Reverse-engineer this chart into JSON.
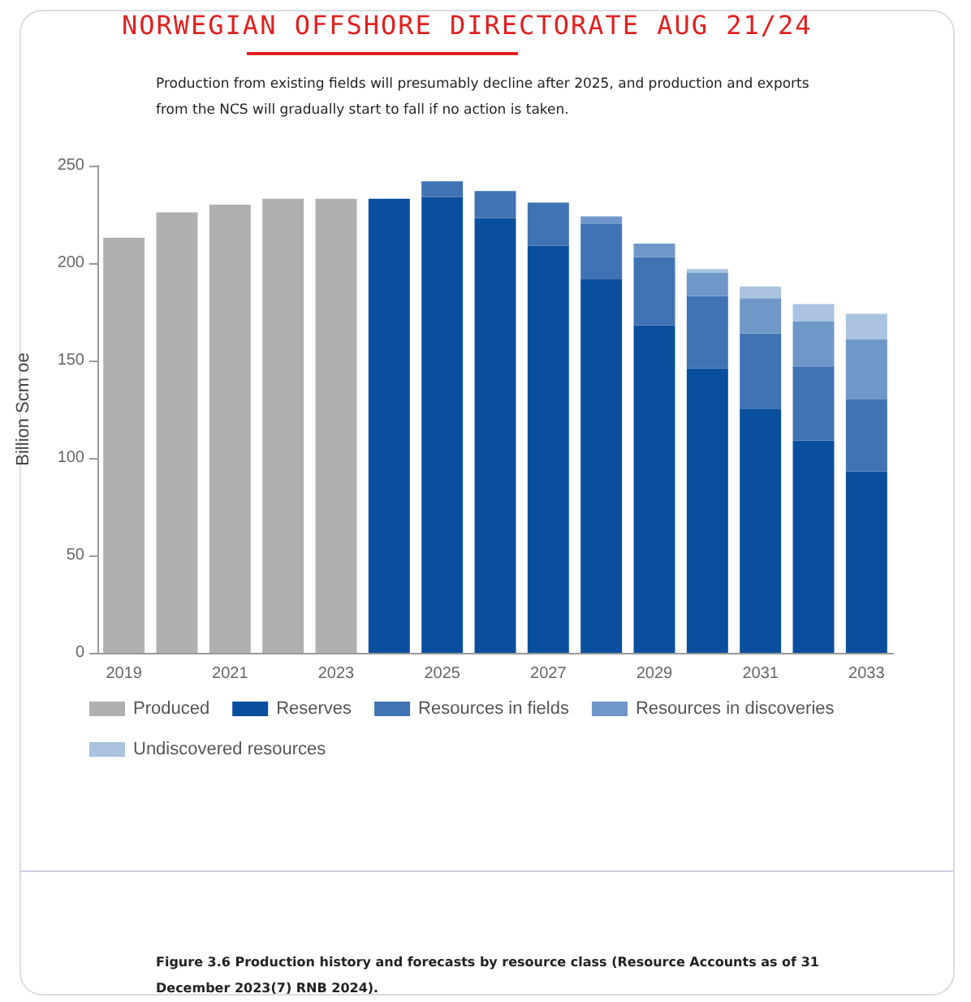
{
  "chart_data": {
    "type": "bar",
    "title": "Production from existing fields will presumably decline after 2025, and production and exports from the NCS will gradually start to fall if no action is taken.",
    "ylabel": "Billion Scm oe",
    "annotations": [
      "NORWEGIAN OFFSHORE DIRECTORATE AUG 21/24",
      "Figure 3.6 Production history and forecasts by resource class (Resource Accounts as of 31 December 2023(7) RNB 2024)."
    ],
    "categories": [
      "2019",
      null,
      "2021",
      null,
      "2023",
      null,
      "2025",
      null,
      "2027",
      null,
      "2029",
      null,
      "2031",
      null,
      "2033"
    ],
    "stacked": true,
    "legend": "bottom",
    "ylim": [
      0,
      250
    ],
    "yticks": [
      0,
      50,
      100,
      150,
      200,
      250
    ],
    "series": [
      {
        "name": "Produced",
        "color": "#b0b0b0",
        "values": [
          213,
          226,
          230,
          233,
          233,
          null,
          null,
          null,
          null,
          null,
          null,
          null,
          null,
          null,
          null
        ]
      },
      {
        "name": "Reserves",
        "color": "#0a4f9e",
        "values": [
          null,
          null,
          null,
          null,
          null,
          233,
          234,
          223,
          209,
          192,
          168,
          146,
          125,
          109,
          93
        ]
      },
      {
        "name": "Resources in fields",
        "color": "#3f73b4",
        "values": [
          null,
          null,
          null,
          null,
          null,
          null,
          8,
          14,
          22,
          28,
          35,
          37,
          39,
          38,
          37
        ]
      },
      {
        "name": "Resources in discoveries",
        "color": "#6f98c8",
        "values": [
          null,
          null,
          null,
          null,
          null,
          null,
          null,
          null,
          null,
          4,
          7,
          12,
          18,
          23,
          31
        ]
      },
      {
        "name": "Undiscovered resources",
        "color": "#a9c3e0",
        "values": [
          null,
          null,
          null,
          null,
          null,
          null,
          null,
          null,
          null,
          null,
          null,
          2,
          6,
          9,
          13
        ]
      }
    ]
  }
}
